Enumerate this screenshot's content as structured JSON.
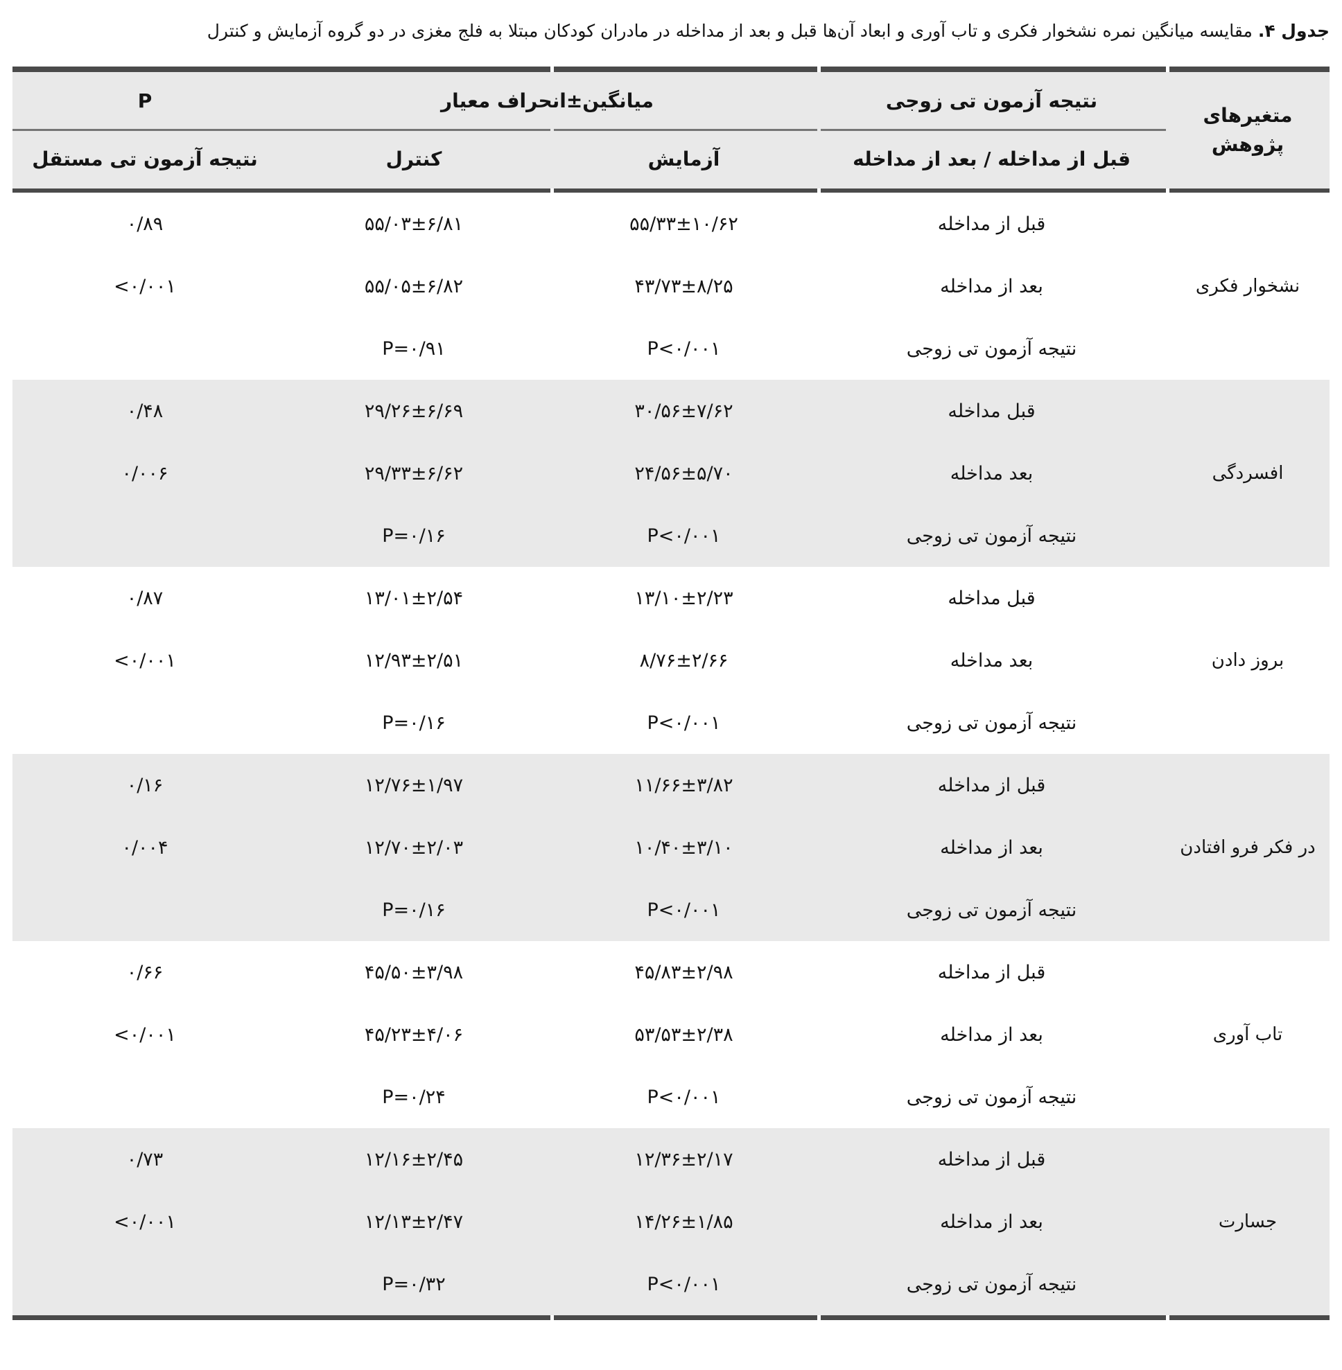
{
  "caption": {
    "label": "جدول ۴.",
    "text": " مقایسه میانگین نمره نشخوار فکری و تاب آوری و ابعاد آن‌ها قبل و بعد از مداخله در مادران کودکان مبتلا به فلج مغزی در دو گروه آزمایش و کنترل"
  },
  "header": {
    "variables": "متغیرهای پژوهش",
    "paired_t": "نتیجه آزمون تی زوجی",
    "mean_sd": "میانگین±انحراف معیار",
    "p": "P",
    "row_label_sub": "قبل از مداخله / بعد از مداخله",
    "experiment": "آزمایش",
    "control": "کنترل",
    "independent_t": "نتیجه آزمون تی مستقل"
  },
  "colors": {
    "stripe": "#e9e9e9",
    "border_dark": "#4a4a4a",
    "border_mid": "#757575",
    "text": "#141414"
  },
  "groups": [
    {
      "variable": "نشخوار فکری",
      "rows": [
        {
          "label": "قبل از مداخله",
          "experiment": "۵۵/۳۳±۱۰/۶۲",
          "control": "۵۵/۰۳±۶/۸۱",
          "p": "۰/۸۹"
        },
        {
          "label": "بعد از مداخله",
          "experiment": "۴۳/۷۳±۸/۲۵",
          "control": "۵۵/۰۵±۶/۸۲",
          "p": "<۰/۰۰۱"
        },
        {
          "label": "نتیجه آزمون تی زوجی",
          "experiment": "P<۰/۰۰۱",
          "control": "P=۰/۹۱",
          "p": ""
        }
      ]
    },
    {
      "variable": "افسردگی",
      "rows": [
        {
          "label": "قبل مداخله",
          "experiment": "۳۰/۵۶±۷/۶۲",
          "control": "۲۹/۲۶±۶/۶۹",
          "p": "۰/۴۸"
        },
        {
          "label": "بعد مداخله",
          "experiment": "۲۴/۵۶±۵/۷۰",
          "control": "۲۹/۳۳±۶/۶۲",
          "p": "۰/۰۰۶"
        },
        {
          "label": "نتیجه آزمون تی زوجی",
          "experiment": "P<۰/۰۰۱",
          "control": "P=۰/۱۶",
          "p": ""
        }
      ]
    },
    {
      "variable": "بروز دادن",
      "rows": [
        {
          "label": "قبل مداخله",
          "experiment": "۱۳/۱۰±۲/۲۳",
          "control": "۱۳/۰۱±۲/۵۴",
          "p": "۰/۸۷"
        },
        {
          "label": "بعد مداخله",
          "experiment": "۸/۷۶±۲/۶۶",
          "control": "۱۲/۹۳±۲/۵۱",
          "p": "<۰/۰۰۱"
        },
        {
          "label": "نتیجه آزمون تی زوجی",
          "experiment": "P<۰/۰۰۱",
          "control": "P=۰/۱۶",
          "p": ""
        }
      ]
    },
    {
      "variable": "در فکر فرو افتادن",
      "rows": [
        {
          "label": "قبل از مداخله",
          "experiment": "۱۱/۶۶±۳/۸۲",
          "control": "۱۲/۷۶±۱/۹۷",
          "p": "۰/۱۶"
        },
        {
          "label": "بعد از مداخله",
          "experiment": "۱۰/۴۰±۳/۱۰",
          "control": "۱۲/۷۰±۲/۰۳",
          "p": "۰/۰۰۴"
        },
        {
          "label": "نتیجه آزمون تی زوجی",
          "experiment": "P<۰/۰۰۱",
          "control": "P=۰/۱۶",
          "p": ""
        }
      ]
    },
    {
      "variable": "تاب آوری",
      "rows": [
        {
          "label": "قبل از مداخله",
          "experiment": "۴۵/۸۳±۲/۹۸",
          "control": "۴۵/۵۰±۳/۹۸",
          "p": "۰/۶۶"
        },
        {
          "label": "بعد از مداخله",
          "experiment": "۵۳/۵۳±۲/۳۸",
          "control": "۴۵/۲۳±۴/۰۶",
          "p": "<۰/۰۰۱"
        },
        {
          "label": "نتیجه آزمون تی زوجی",
          "experiment": "P<۰/۰۰۱",
          "control": "P=۰/۲۴",
          "p": ""
        }
      ]
    },
    {
      "variable": "جسارت",
      "rows": [
        {
          "label": "قبل از مداخله",
          "experiment": "۱۲/۳۶±۲/۱۷",
          "control": "۱۲/۱۶±۲/۴۵",
          "p": "۰/۷۳"
        },
        {
          "label": "بعد از مداخله",
          "experiment": "۱۴/۲۶±۱/۸۵",
          "control": "۱۲/۱۳±۲/۴۷",
          "p": "<۰/۰۰۱"
        },
        {
          "label": "نتیجه آزمون تی زوجی",
          "experiment": "P<۰/۰۰۱",
          "control": "P=۰/۳۲",
          "p": ""
        }
      ]
    }
  ]
}
